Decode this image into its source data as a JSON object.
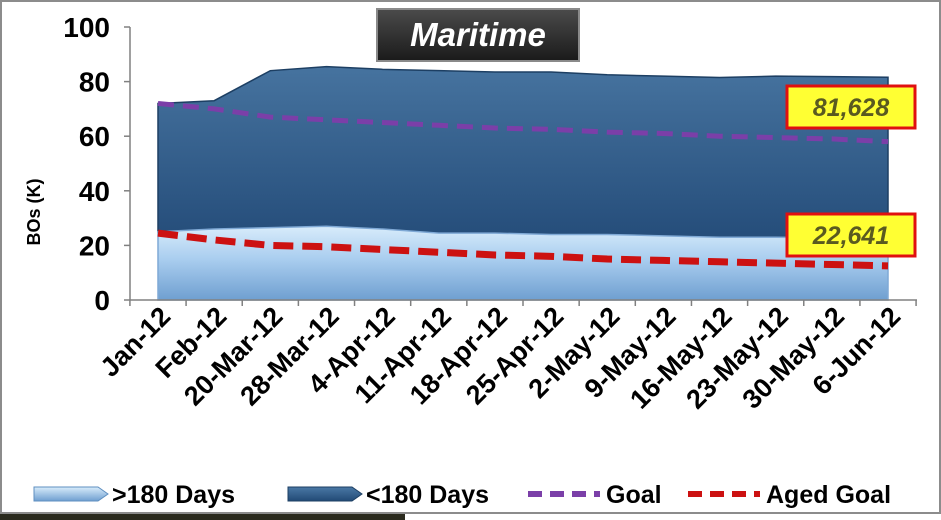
{
  "chart_data": {
    "type": "area",
    "title": "Maritime",
    "ylabel": "BOs (K)",
    "xlabel": "",
    "ylim": [
      0,
      100
    ],
    "yticks": [
      0,
      20,
      40,
      60,
      80,
      100
    ],
    "grid": false,
    "legend_position": "bottom",
    "categories": [
      "Jan-12",
      "Feb-12",
      "20-Mar-12",
      "28-Mar-12",
      "4-Apr-12",
      "11-Apr-12",
      "18-Apr-12",
      "25-Apr-12",
      "2-May-12",
      "9-May-12",
      "16-May-12",
      "23-May-12",
      "30-May-12",
      "6-Jun-12"
    ],
    "series": [
      {
        "name": ">180 Days",
        "kind": "area",
        "stacked": true,
        "color": "#9cc3e8",
        "values": [
          25,
          26,
          26.5,
          27,
          26,
          24.5,
          24.5,
          24,
          24,
          23.5,
          23,
          23,
          22.8,
          22.6
        ]
      },
      {
        "name": "<180 Days",
        "kind": "area",
        "stacked": true,
        "color": "#2f5d8f",
        "values": [
          47,
          47,
          57.5,
          58.5,
          58.5,
          59.5,
          59,
          59.5,
          58.5,
          58.5,
          58.5,
          59,
          59,
          59
        ]
      },
      {
        "name": "Goal",
        "kind": "line",
        "dash": true,
        "color": "#7b3fa8",
        "values": [
          72,
          70,
          67,
          66,
          65,
          64,
          63,
          62.5,
          61.5,
          61,
          60,
          59.5,
          59,
          58
        ]
      },
      {
        "name": "Aged Goal",
        "kind": "line",
        "dash": true,
        "color": "#cc1111",
        "values": [
          24.5,
          22,
          20,
          19.5,
          18.5,
          17.5,
          16.5,
          16,
          15,
          14.5,
          14,
          13.5,
          13,
          12.5
        ]
      }
    ],
    "annotations": [
      {
        "text": "81,628",
        "anchor_value": 81.6
      },
      {
        "text": "22,641",
        "anchor_value": 22.6
      }
    ]
  }
}
